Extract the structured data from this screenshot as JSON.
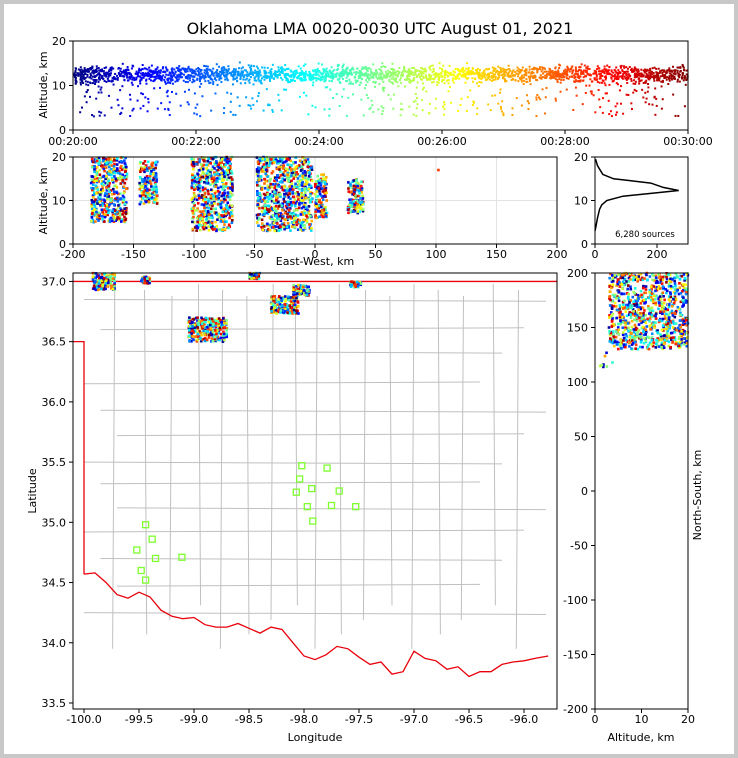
{
  "chart_data": [
    {
      "panel": "altitude-vs-time",
      "type": "scatter",
      "title": "Oklahoma LMA 0020-0030 UTC August 01, 2021",
      "xlabel": "",
      "ylabel": "Altitude, km",
      "x_ticks": [
        "00:20:00",
        "00:22:00",
        "00:24:00",
        "00:26:00",
        "00:28:00",
        "00:30:00"
      ],
      "xlim": [
        0,
        600
      ],
      "ylim": [
        0,
        20
      ],
      "y_ticks": [
        0,
        10,
        20
      ],
      "color_encoding": "time (blue to red jet colormap)",
      "source_band_km": [
        7,
        19
      ]
    },
    {
      "panel": "altitude-vs-east-west",
      "type": "scatter",
      "xlabel": "East-West, km",
      "ylabel": "Altitude, km",
      "xlim": [
        -200,
        200
      ],
      "ylim": [
        0,
        20
      ],
      "x_ticks": [
        -200,
        -150,
        -100,
        -50,
        0,
        50,
        100,
        150,
        200
      ],
      "y_ticks": [
        0,
        10,
        20
      ],
      "grid": true,
      "clusters": [
        {
          "x": [
            -185,
            -155
          ],
          "alt": [
            5,
            20
          ]
        },
        {
          "x": [
            -145,
            -130
          ],
          "alt": [
            9,
            19
          ]
        },
        {
          "x": [
            -102,
            -68
          ],
          "alt": [
            3,
            20
          ]
        },
        {
          "x": [
            -48,
            -2
          ],
          "alt": [
            3,
            20
          ]
        },
        {
          "x": [
            0,
            10
          ],
          "alt": [
            6,
            16
          ]
        },
        {
          "x": [
            27,
            40
          ],
          "alt": [
            7,
            15
          ]
        }
      ]
    },
    {
      "panel": "altitude-histogram",
      "type": "line",
      "xlim": [
        0,
        300
      ],
      "ylim": [
        0,
        20
      ],
      "x_ticks": [
        0,
        200
      ],
      "y_ticks": [
        0,
        10,
        20
      ],
      "annotation": "6,280 sources",
      "profile": [
        [
          0,
          3
        ],
        [
          3,
          4
        ],
        [
          8,
          6
        ],
        [
          15,
          8
        ],
        [
          22,
          9
        ],
        [
          38,
          10
        ],
        [
          90,
          11
        ],
        [
          200,
          11.8
        ],
        [
          270,
          12.3
        ],
        [
          220,
          13
        ],
        [
          180,
          14
        ],
        [
          120,
          14.5
        ],
        [
          60,
          15
        ],
        [
          25,
          16
        ],
        [
          8,
          18
        ],
        [
          2,
          19.5
        ]
      ]
    },
    {
      "panel": "plan-view-map",
      "type": "scatter",
      "xlabel": "Longitude",
      "ylabel": "Latitude",
      "xlim": [
        -100.1,
        -95.7
      ],
      "ylim": [
        33.45,
        37.07
      ],
      "x_ticks": [
        "-100.0",
        "-99.5",
        "-99.0",
        "-98.5",
        "-98.0",
        "-97.5",
        "-97.0",
        "-96.5",
        "-96.0"
      ],
      "y_ticks": [
        "33.5",
        "34.0",
        "34.5",
        "35.0",
        "35.5",
        "36.0",
        "36.5",
        "37.0"
      ],
      "stations": [
        {
          "lon": -98.02,
          "lat": 35.47
        },
        {
          "lon": -97.79,
          "lat": 35.45
        },
        {
          "lon": -98.04,
          "lat": 35.36
        },
        {
          "lon": -98.07,
          "lat": 35.25
        },
        {
          "lon": -97.93,
          "lat": 35.28
        },
        {
          "lon": -97.68,
          "lat": 35.26
        },
        {
          "lon": -97.97,
          "lat": 35.13
        },
        {
          "lon": -97.75,
          "lat": 35.14
        },
        {
          "lon": -97.53,
          "lat": 35.13
        },
        {
          "lon": -97.92,
          "lat": 35.01
        },
        {
          "lon": -99.44,
          "lat": 34.98
        },
        {
          "lon": -99.38,
          "lat": 34.86
        },
        {
          "lon": -99.52,
          "lat": 34.77
        },
        {
          "lon": -99.35,
          "lat": 34.7
        },
        {
          "lon": -99.11,
          "lat": 34.71
        },
        {
          "lon": -99.48,
          "lat": 34.6
        },
        {
          "lon": -99.44,
          "lat": 34.52
        }
      ],
      "clusters": [
        {
          "lon": [
            -99.92,
            -99.72
          ],
          "lat": [
            36.93,
            37.07
          ]
        },
        {
          "lon": [
            -99.48,
            -99.4
          ],
          "lat": [
            36.98,
            37.04
          ]
        },
        {
          "lon": [
            -99.05,
            -98.7
          ],
          "lat": [
            36.5,
            36.7
          ]
        },
        {
          "lon": [
            -98.3,
            -98.05
          ],
          "lat": [
            36.73,
            36.88
          ]
        },
        {
          "lon": [
            -98.1,
            -97.95
          ],
          "lat": [
            36.88,
            36.97
          ]
        },
        {
          "lon": [
            -98.5,
            -98.4
          ],
          "lat": [
            37.02,
            37.07
          ]
        },
        {
          "lon": [
            -97.58,
            -97.48
          ],
          "lat": [
            36.95,
            37.0
          ]
        }
      ]
    },
    {
      "panel": "north-south-vs-altitude",
      "type": "scatter",
      "xlabel": "Altitude, km",
      "ylabel": "North-South, km",
      "xlim": [
        0,
        20
      ],
      "ylim": [
        -200,
        200
      ],
      "x_ticks": [
        0,
        10,
        20
      ],
      "y_ticks": [
        -200,
        -150,
        -100,
        -50,
        0,
        50,
        100,
        150,
        200
      ],
      "clusters": [
        {
          "alt": [
            3,
            20
          ],
          "ns": [
            130,
            200
          ]
        },
        {
          "alt": [
            1,
            4
          ],
          "ns": [
            110,
            130
          ]
        }
      ]
    }
  ],
  "colors": {
    "state_border": "#e8000b",
    "county_lines": "#c0c0c0",
    "station_marker": "#7fff2f",
    "histogram_line": "#000000",
    "colormap": [
      "#000080",
      "#0000ff",
      "#0080ff",
      "#00ffff",
      "#80ff80",
      "#ffff00",
      "#ff8000",
      "#ff0000",
      "#800000"
    ]
  }
}
